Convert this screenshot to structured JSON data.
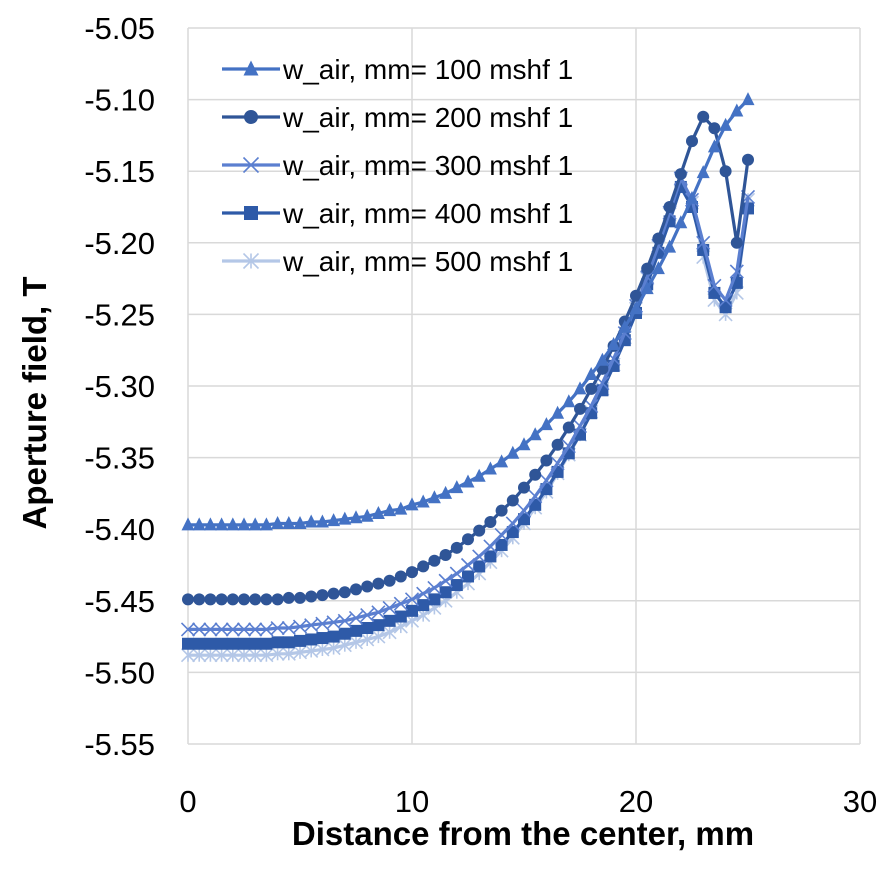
{
  "chart_data": {
    "type": "line",
    "title": "",
    "xlabel": "Distance from the center, mm",
    "ylabel": "Aperture field, T",
    "xlim": [
      0,
      30
    ],
    "ylim": [
      -5.55,
      -5.05
    ],
    "xticks": [
      0,
      10,
      20,
      30
    ],
    "xtick_labels": [
      "0",
      "10",
      "20",
      "30"
    ],
    "yticks": [
      -5.05,
      -5.1,
      -5.15,
      -5.2,
      -5.25,
      -5.3,
      -5.35,
      -5.4,
      -5.45,
      -5.5,
      -5.55
    ],
    "ytick_labels": [
      "-5.05",
      "-5.10",
      "-5.15",
      "-5.20",
      "-5.25",
      "-5.30",
      "-5.35",
      "-5.40",
      "-5.45",
      "-5.50",
      "-5.55"
    ],
    "grid": true,
    "legend_position": "top-left",
    "x": [
      0,
      0.5,
      1,
      1.5,
      2,
      2.5,
      3,
      3.5,
      4,
      4.5,
      5,
      5.5,
      6,
      6.5,
      7,
      7.5,
      8,
      8.5,
      9,
      9.5,
      10,
      10.5,
      11,
      11.5,
      12,
      12.5,
      13,
      13.5,
      14,
      14.5,
      15,
      15.5,
      16,
      16.5,
      17,
      17.5,
      18,
      18.5,
      19,
      19.5,
      20,
      20.5,
      21,
      21.5,
      22,
      22.5,
      23,
      23.5,
      24,
      24.5,
      25
    ],
    "series": [
      {
        "name": "w_air, mm= 100 mshf 1",
        "color": "#4472C4",
        "marker": "triangle",
        "values": [
          -5.397,
          -5.397,
          -5.397,
          -5.397,
          -5.397,
          -5.397,
          -5.397,
          -5.397,
          -5.396,
          -5.396,
          -5.396,
          -5.395,
          -5.395,
          -5.394,
          -5.393,
          -5.392,
          -5.391,
          -5.389,
          -5.387,
          -5.386,
          -5.383,
          -5.381,
          -5.378,
          -5.375,
          -5.371,
          -5.367,
          -5.363,
          -5.358,
          -5.353,
          -5.347,
          -5.341,
          -5.334,
          -5.327,
          -5.319,
          -5.311,
          -5.302,
          -5.292,
          -5.282,
          -5.271,
          -5.259,
          -5.246,
          -5.232,
          -5.218,
          -5.203,
          -5.186,
          -5.169,
          -5.151,
          -5.133,
          -5.118,
          -5.108,
          -5.1
        ]
      },
      {
        "name": "w_air, mm= 200 mshf 1",
        "color": "#2F5597",
        "marker": "circle",
        "values": [
          -5.449,
          -5.449,
          -5.449,
          -5.449,
          -5.449,
          -5.449,
          -5.449,
          -5.449,
          -5.449,
          -5.448,
          -5.448,
          -5.447,
          -5.446,
          -5.445,
          -5.444,
          -5.442,
          -5.44,
          -5.438,
          -5.436,
          -5.433,
          -5.43,
          -5.426,
          -5.422,
          -5.418,
          -5.413,
          -5.407,
          -5.401,
          -5.395,
          -5.387,
          -5.38,
          -5.371,
          -5.362,
          -5.352,
          -5.341,
          -5.329,
          -5.316,
          -5.302,
          -5.288,
          -5.272,
          -5.255,
          -5.237,
          -5.218,
          -5.197,
          -5.175,
          -5.152,
          -5.129,
          -5.112,
          -5.12,
          -5.15,
          -5.2,
          -5.142
        ]
      },
      {
        "name": "w_air, mm= 300 mshf 1",
        "color": "#5B7FD0",
        "marker": "x",
        "values": [
          -5.47,
          -5.47,
          -5.47,
          -5.47,
          -5.47,
          -5.47,
          -5.47,
          -5.47,
          -5.469,
          -5.469,
          -5.468,
          -5.467,
          -5.466,
          -5.465,
          -5.464,
          -5.462,
          -5.46,
          -5.458,
          -5.455,
          -5.452,
          -5.449,
          -5.445,
          -5.441,
          -5.436,
          -5.431,
          -5.425,
          -5.419,
          -5.412,
          -5.404,
          -5.396,
          -5.387,
          -5.377,
          -5.366,
          -5.354,
          -5.342,
          -5.328,
          -5.314,
          -5.298,
          -5.281,
          -5.263,
          -5.244,
          -5.224,
          -5.202,
          -5.179,
          -5.155,
          -5.17,
          -5.2,
          -5.23,
          -5.24,
          -5.22,
          -5.168
        ]
      },
      {
        "name": "w_air, mm= 400 mshf 1",
        "color": "#2E5AA8",
        "marker": "square",
        "values": [
          -5.48,
          -5.48,
          -5.48,
          -5.48,
          -5.48,
          -5.48,
          -5.48,
          -5.48,
          -5.479,
          -5.479,
          -5.478,
          -5.477,
          -5.476,
          -5.475,
          -5.473,
          -5.471,
          -5.469,
          -5.467,
          -5.464,
          -5.461,
          -5.457,
          -5.453,
          -5.449,
          -5.444,
          -5.439,
          -5.433,
          -5.426,
          -5.419,
          -5.411,
          -5.402,
          -5.393,
          -5.383,
          -5.372,
          -5.36,
          -5.347,
          -5.334,
          -5.319,
          -5.303,
          -5.286,
          -5.268,
          -5.249,
          -5.229,
          -5.207,
          -5.185,
          -5.161,
          -5.175,
          -5.205,
          -5.235,
          -5.245,
          -5.228,
          -5.176
        ]
      },
      {
        "name": "w_air, mm= 500 mshf 1",
        "color": "#B4C7E7",
        "marker": "asterisk",
        "values": [
          -5.488,
          -5.488,
          -5.488,
          -5.488,
          -5.488,
          -5.488,
          -5.488,
          -5.488,
          -5.487,
          -5.487,
          -5.486,
          -5.485,
          -5.484,
          -5.483,
          -5.481,
          -5.479,
          -5.477,
          -5.475,
          -5.472,
          -5.468,
          -5.464,
          -5.46,
          -5.455,
          -5.45,
          -5.444,
          -5.438,
          -5.431,
          -5.423,
          -5.415,
          -5.406,
          -5.396,
          -5.385,
          -5.374,
          -5.361,
          -5.348,
          -5.334,
          -5.318,
          -5.302,
          -5.285,
          -5.266,
          -5.246,
          -5.225,
          -5.203,
          -5.18,
          -5.156,
          -5.172,
          -5.21,
          -5.24,
          -5.25,
          -5.235,
          -5.17
        ]
      }
    ]
  }
}
